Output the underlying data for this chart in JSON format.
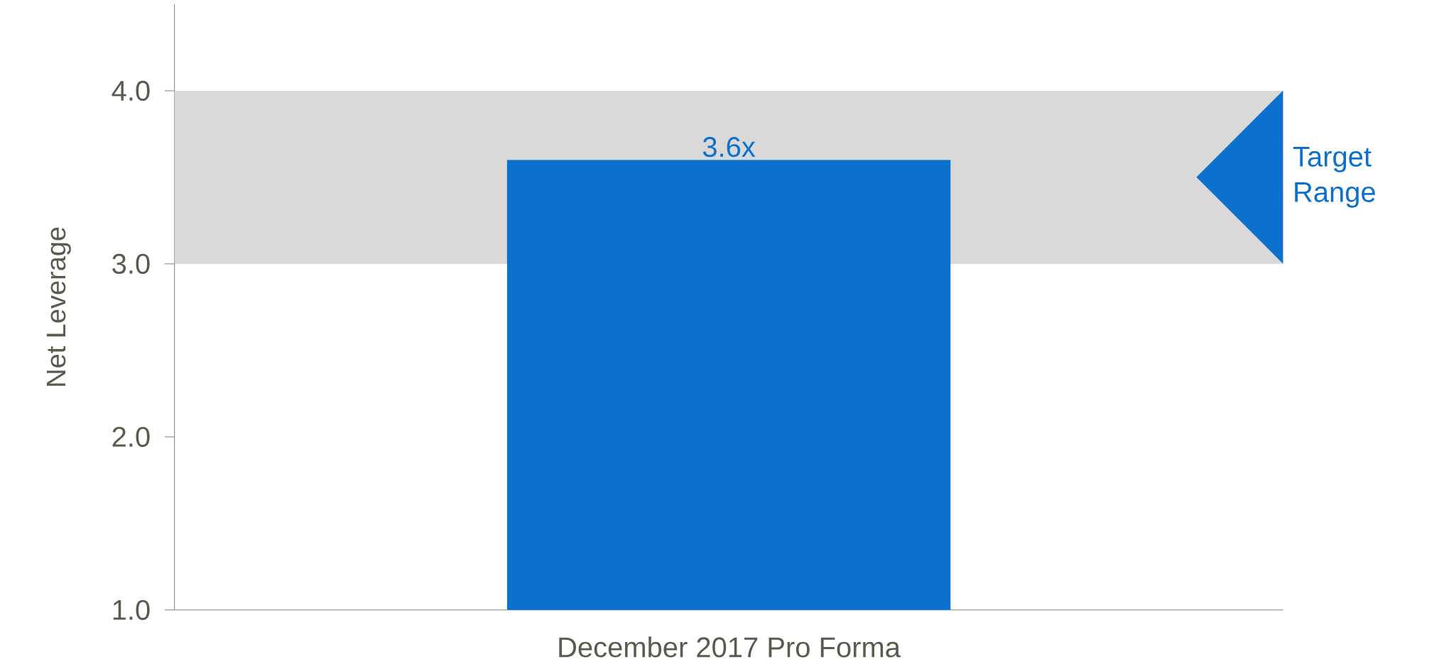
{
  "chart_data": {
    "type": "bar",
    "ylabel": "Net Leverage",
    "categories": [
      "December 2017 Pro Forma"
    ],
    "values": [
      3.6
    ],
    "value_labels": [
      "3.6x"
    ],
    "color": "#0c70ce",
    "ylim": [
      1,
      4.5
    ],
    "yticks": [
      {
        "value": 1,
        "label": "1.0"
      },
      {
        "value": 2,
        "label": "2.0"
      },
      {
        "value": 3,
        "label": "3.0"
      },
      {
        "value": 4,
        "label": "4.0"
      }
    ],
    "bands": [
      {
        "axis": "y",
        "from": 3,
        "to": 4,
        "label": "Target Range",
        "color": "#d9d9d9"
      }
    ],
    "grid": false
  }
}
